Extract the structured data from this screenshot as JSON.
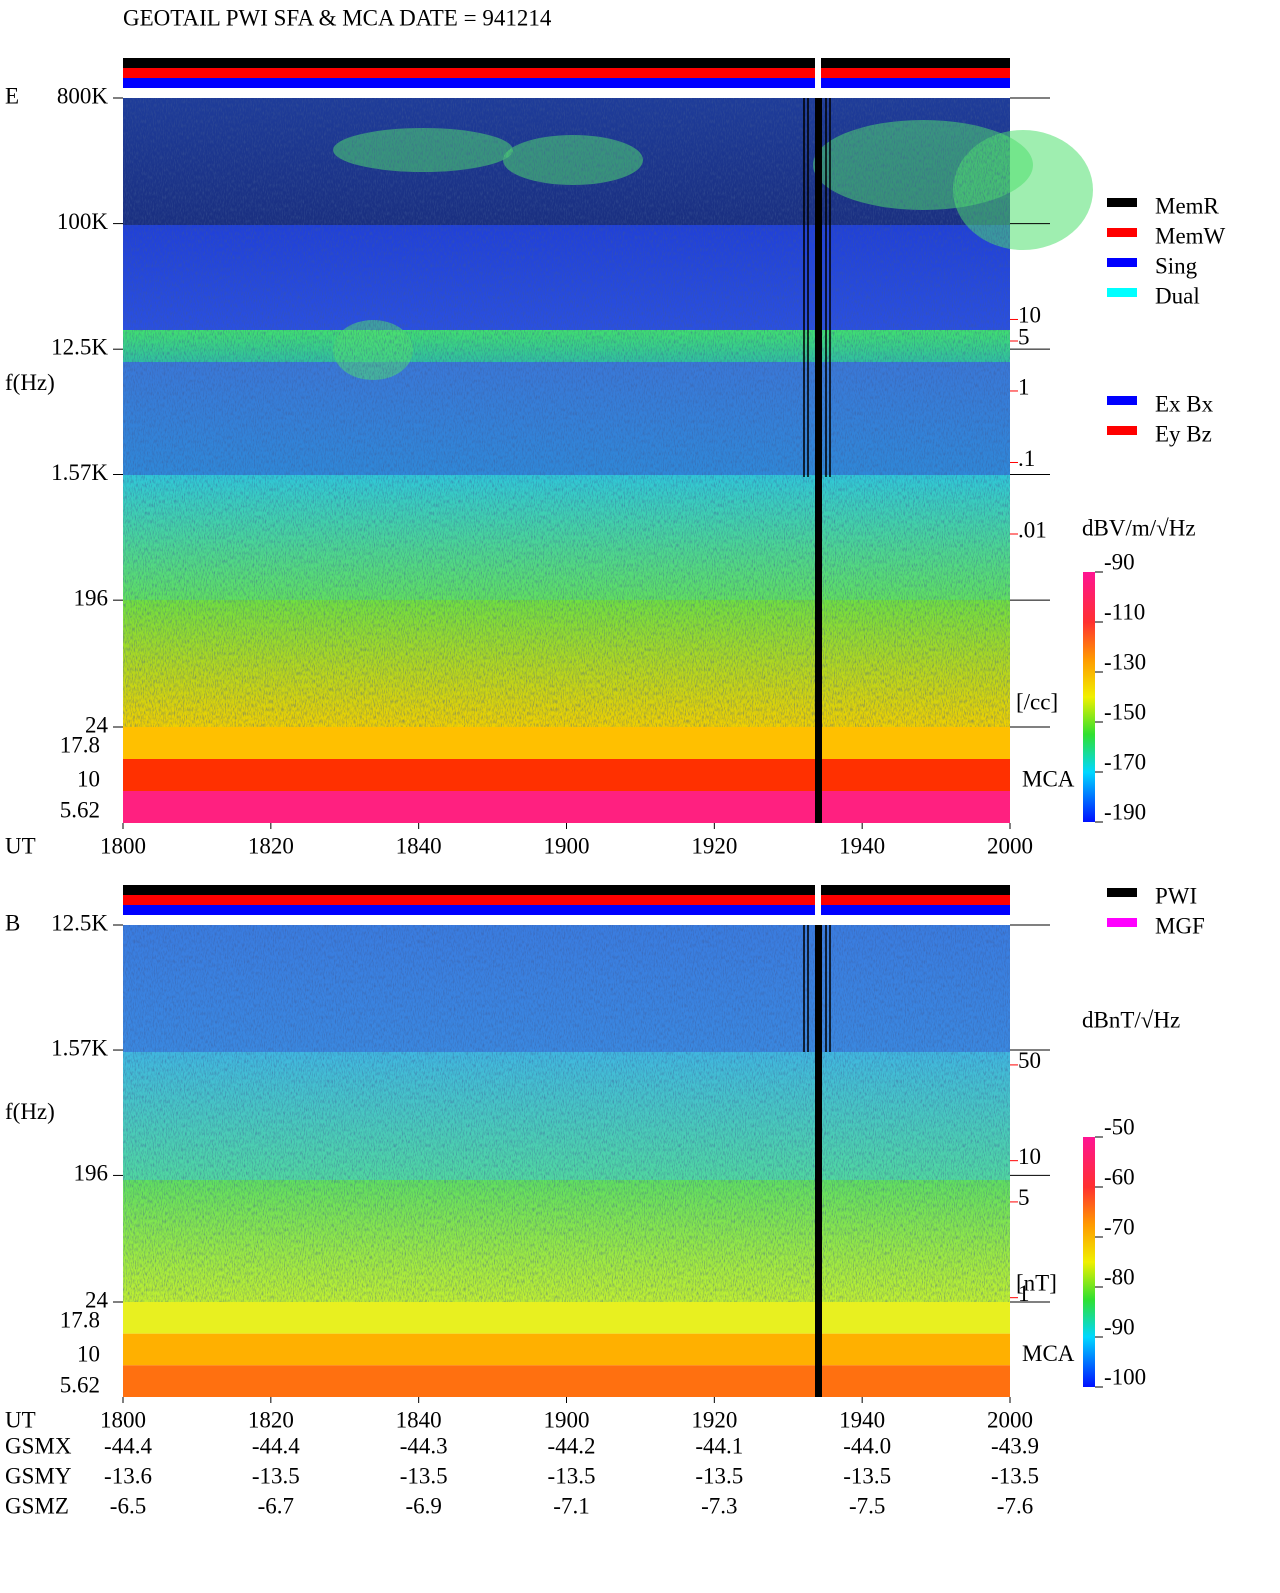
{
  "title": "GEOTAIL  PWI SFA & MCA   DATE = 941214",
  "chart_data": [
    {
      "type": "spectrogram",
      "panel_label": "E",
      "y_label": "f(Hz)",
      "x_label": "UT",
      "yscale": "log",
      "ylim": [
        24,
        800000
      ],
      "yticks": [
        {
          "value": 800000,
          "label": "800K"
        },
        {
          "value": 100000,
          "label": "100K"
        },
        {
          "value": 12500,
          "label": "12.5K"
        },
        {
          "value": 1570,
          "label": "1.57K"
        },
        196,
        24
      ],
      "mca_label": "MCA",
      "mca_channels": [
        "17.8",
        "10",
        "5.62"
      ],
      "x": [
        "1800",
        "1820",
        "1840",
        "1900",
        "1920",
        "1940",
        "2000"
      ],
      "y2_label": "[/cc]",
      "y2scale": "log",
      "y2color": "#ff0000",
      "y2lim": [
        2e-05,
        12500
      ],
      "y2ticks": [
        10,
        5,
        1,
        {
          "value": 0.1,
          "label": ".1"
        },
        {
          "value": 0.01,
          "label": ".01"
        }
      ],
      "colorbar": {
        "label": "dBV/m/√Hz",
        "lim": [
          -190,
          -90
        ],
        "ticks": [
          -90,
          -110,
          -130,
          -150,
          -170,
          -190
        ]
      },
      "legend": [
        [
          {
            "name": "MemR",
            "color": "#000000"
          },
          {
            "name": "MemW",
            "color": "#ff0000"
          },
          {
            "name": "Sing",
            "color": "#0000ff"
          },
          {
            "name": "Dual",
            "color": "#00ffff"
          }
        ],
        [
          {
            "name": "Ex Bx",
            "color": "#0000ff"
          },
          {
            "name": "Ey Bz",
            "color": "#ff0000"
          }
        ]
      ]
    },
    {
      "type": "spectrogram",
      "panel_label": "B",
      "y_label": "f(Hz)",
      "x_label": "UT",
      "yscale": "log",
      "ylim": [
        24,
        12500
      ],
      "yticks": [
        {
          "value": 12500,
          "label": "12.5K"
        },
        {
          "value": 1570,
          "label": "1.57K"
        },
        196,
        24
      ],
      "mca_label": "MCA",
      "mca_channels": [
        "17.8",
        "10",
        "5.62"
      ],
      "x": [
        "1800",
        "1820",
        "1840",
        "1900",
        "1920",
        "1940",
        "2000"
      ],
      "y2_label": "[nT]",
      "y2scale": "log",
      "y2color": "#ff0000",
      "y2lim": [
        0.93,
        525
      ],
      "y2ticks": [
        50,
        10,
        5,
        1
      ],
      "colorbar": {
        "label": "dBnT/√Hz",
        "lim": [
          -100,
          -50
        ],
        "ticks": [
          -50,
          -60,
          -70,
          -80,
          -90,
          -100
        ]
      },
      "legend": [
        [
          {
            "name": "PWI",
            "color": "#000000"
          },
          {
            "name": "MGF",
            "color": "#ff00ff"
          }
        ]
      ]
    }
  ],
  "orbit": {
    "rows": [
      [
        "GSMX",
        "-44.4",
        "-44.4",
        "-44.3",
        "-44.2",
        "-44.1",
        "-44.0",
        "-43.9"
      ],
      [
        "GSMY",
        "-13.6",
        "-13.5",
        "-13.5",
        "-13.5",
        "-13.5",
        "-13.5",
        "-13.5"
      ],
      [
        "GSMZ",
        "-6.5",
        "-6.7",
        "-6.9",
        "-7.1",
        "-7.3",
        "-7.5",
        "-7.6"
      ]
    ]
  }
}
